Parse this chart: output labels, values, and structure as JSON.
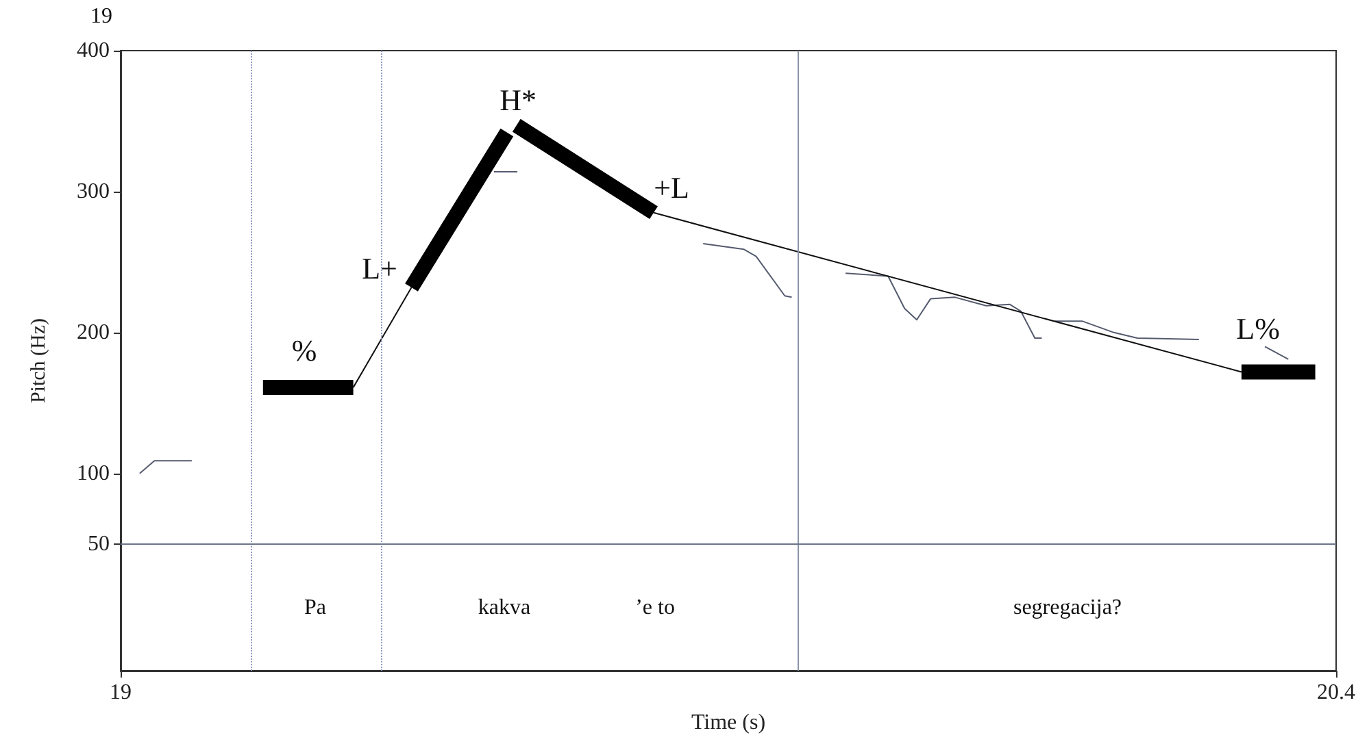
{
  "chart_data": {
    "type": "line",
    "xlabel": "Time (s)",
    "ylabel": "Pitch (Hz)",
    "xlim": [
      19,
      20.4
    ],
    "xticks": [
      19,
      20.4
    ],
    "ylim": [
      -40,
      400
    ],
    "yticks": [
      50,
      100,
      200,
      300,
      400
    ],
    "grid": false,
    "marker": "none",
    "series": [
      {
        "color": "#555b6e",
        "x": [
          19.022,
          19.039,
          19.082,
          null,
          19.43,
          19.457,
          null,
          19.671,
          19.718,
          19.732,
          19.765,
          19.773,
          null,
          19.835,
          19.884,
          19.903,
          19.917,
          19.933,
          19.961,
          19.997,
          20.024,
          20.037,
          20.053,
          20.061,
          null,
          20.076,
          20.108,
          20.144,
          20.171,
          20.242,
          null,
          20.318,
          20.345
        ],
        "values": [
          100,
          109,
          109,
          null,
          314,
          314,
          null,
          263,
          259,
          254,
          226,
          225,
          null,
          242,
          240,
          217,
          209,
          224,
          225,
          219,
          220,
          215,
          196,
          196,
          null,
          208,
          208,
          200,
          196,
          195,
          null,
          190,
          181
        ]
      },
      {
        "color": "#111111",
        "x": [
          19.268,
          19.335,
          null,
          19.614,
          20.291
        ],
        "values": [
          161,
          232,
          null,
          285,
          172
        ]
      },
      {
        "color": "#000000",
        "x": [
          19.164,
          19.268,
          null,
          19.335,
          19.445,
          null,
          19.456,
          19.614,
          null,
          20.291,
          20.376
        ],
        "values": [
          161,
          161,
          null,
          232,
          342,
          null,
          347,
          285,
          null,
          172,
          172
        ]
      }
    ],
    "ref_lines": [
      {
        "axis": "x",
        "value": 19.152,
        "color": "#8f9cc8",
        "line_style": "dotted"
      },
      {
        "axis": "x",
        "value": 19.295,
        "color": "#8f9cc8",
        "line_style": "dotted"
      },
      {
        "axis": "x",
        "value": 19.78,
        "color": "#8a94a8",
        "line_style": "solid"
      },
      {
        "axis": "y",
        "value": 50,
        "color": "#6a7488",
        "line_style": "solid"
      }
    ],
    "annotations": [
      "19",
      "%",
      "L+",
      "H*",
      "+L",
      "L%",
      "Pa",
      "kakva",
      "’e to",
      "segregacija?"
    ]
  }
}
